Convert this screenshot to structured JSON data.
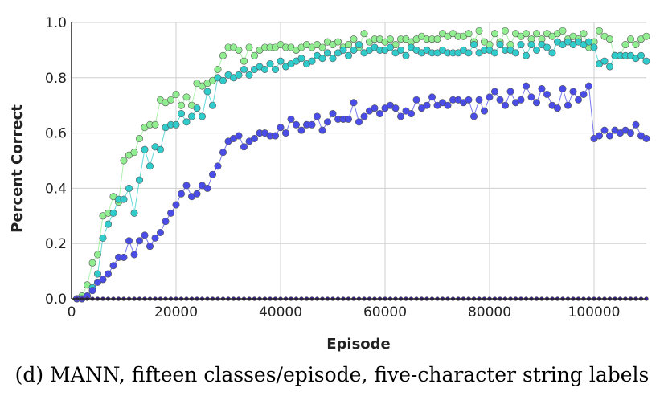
{
  "caption": "(d) MANN, fifteen classes/episode, five-character string labels",
  "chart_data": {
    "type": "line",
    "xlabel": "Episode",
    "ylabel": "Percent Correct",
    "xlim": [
      0,
      110000
    ],
    "ylim": [
      0,
      1.0
    ],
    "xticks": [
      0,
      20000,
      40000,
      60000,
      80000,
      100000
    ],
    "yticks": [
      0.0,
      0.2,
      0.4,
      0.6,
      0.8,
      1.0
    ],
    "ytick_labels": [
      "0.0",
      "0.2",
      "0.4",
      "0.6",
      "0.8",
      "1.0"
    ],
    "grid": true,
    "legend": false,
    "x": [
      1000,
      2000,
      3000,
      4000,
      5000,
      6000,
      7000,
      8000,
      9000,
      10000,
      11000,
      12000,
      13000,
      14000,
      15000,
      16000,
      17000,
      18000,
      19000,
      20000,
      21000,
      22000,
      23000,
      24000,
      25000,
      26000,
      27000,
      28000,
      29000,
      30000,
      31000,
      32000,
      33000,
      34000,
      35000,
      36000,
      37000,
      38000,
      39000,
      40000,
      41000,
      42000,
      43000,
      44000,
      45000,
      46000,
      47000,
      48000,
      49000,
      50000,
      51000,
      52000,
      53000,
      54000,
      55000,
      56000,
      57000,
      58000,
      59000,
      60000,
      61000,
      62000,
      63000,
      64000,
      65000,
      66000,
      67000,
      68000,
      69000,
      70000,
      71000,
      72000,
      73000,
      74000,
      75000,
      76000,
      77000,
      78000,
      79000,
      80000,
      81000,
      82000,
      83000,
      84000,
      85000,
      86000,
      87000,
      88000,
      89000,
      90000,
      91000,
      92000,
      93000,
      94000,
      95000,
      96000,
      97000,
      98000,
      99000,
      100000,
      101000,
      102000,
      103000,
      104000,
      105000,
      106000,
      107000,
      108000,
      109000,
      110000
    ],
    "series": [
      {
        "color": "#90ee90",
        "values": [
          0.0,
          0.01,
          0.05,
          0.13,
          0.16,
          0.3,
          0.31,
          0.37,
          0.35,
          0.5,
          0.52,
          0.53,
          0.58,
          0.62,
          0.63,
          0.63,
          0.72,
          0.71,
          0.72,
          0.74,
          0.7,
          0.73,
          0.7,
          0.78,
          0.77,
          0.78,
          0.79,
          0.83,
          0.88,
          0.91,
          0.91,
          0.9,
          0.86,
          0.91,
          0.88,
          0.9,
          0.91,
          0.91,
          0.91,
          0.92,
          0.91,
          0.91,
          0.9,
          0.91,
          0.92,
          0.91,
          0.92,
          0.91,
          0.93,
          0.92,
          0.93,
          0.91,
          0.92,
          0.94,
          0.91,
          0.96,
          0.93,
          0.94,
          0.94,
          0.93,
          0.94,
          0.92,
          0.94,
          0.94,
          0.93,
          0.94,
          0.95,
          0.94,
          0.94,
          0.94,
          0.96,
          0.95,
          0.96,
          0.95,
          0.95,
          0.96,
          0.93,
          0.97,
          0.93,
          0.92,
          0.96,
          0.93,
          0.97,
          0.92,
          0.96,
          0.95,
          0.96,
          0.94,
          0.96,
          0.94,
          0.96,
          0.95,
          0.96,
          0.97,
          0.94,
          0.95,
          0.94,
          0.96,
          0.91,
          0.93,
          0.97,
          0.95,
          0.94,
          0.88,
          0.88,
          0.92,
          0.94,
          0.92,
          0.94,
          0.95
        ]
      },
      {
        "color": "#30cccc",
        "values": [
          0.0,
          0.0,
          0.01,
          0.04,
          0.09,
          0.22,
          0.27,
          0.31,
          0.36,
          0.36,
          0.4,
          0.31,
          0.43,
          0.54,
          0.48,
          0.55,
          0.54,
          0.62,
          0.63,
          0.63,
          0.67,
          0.64,
          0.66,
          0.69,
          0.66,
          0.75,
          0.7,
          0.8,
          0.79,
          0.81,
          0.8,
          0.81,
          0.83,
          0.81,
          0.83,
          0.84,
          0.83,
          0.85,
          0.83,
          0.86,
          0.84,
          0.85,
          0.86,
          0.87,
          0.85,
          0.86,
          0.88,
          0.87,
          0.89,
          0.87,
          0.89,
          0.9,
          0.88,
          0.9,
          0.92,
          0.89,
          0.9,
          0.91,
          0.9,
          0.9,
          0.91,
          0.89,
          0.9,
          0.88,
          0.91,
          0.9,
          0.89,
          0.9,
          0.89,
          0.89,
          0.9,
          0.89,
          0.89,
          0.89,
          0.9,
          0.89,
          0.92,
          0.89,
          0.9,
          0.9,
          0.89,
          0.92,
          0.9,
          0.9,
          0.89,
          0.92,
          0.88,
          0.92,
          0.9,
          0.92,
          0.91,
          0.89,
          0.93,
          0.92,
          0.93,
          0.92,
          0.93,
          0.92,
          0.93,
          0.91,
          0.85,
          0.86,
          0.84,
          0.88,
          0.88,
          0.88,
          0.88,
          0.87,
          0.88,
          0.86
        ]
      },
      {
        "color": "#4a4ce8",
        "values": [
          0.0,
          0.0,
          0.01,
          0.03,
          0.06,
          0.07,
          0.09,
          0.12,
          0.15,
          0.15,
          0.21,
          0.16,
          0.21,
          0.23,
          0.19,
          0.22,
          0.24,
          0.28,
          0.31,
          0.34,
          0.38,
          0.41,
          0.37,
          0.38,
          0.41,
          0.4,
          0.45,
          0.48,
          0.53,
          0.57,
          0.58,
          0.59,
          0.55,
          0.57,
          0.58,
          0.6,
          0.6,
          0.59,
          0.59,
          0.62,
          0.6,
          0.65,
          0.63,
          0.61,
          0.63,
          0.63,
          0.66,
          0.61,
          0.64,
          0.67,
          0.65,
          0.65,
          0.65,
          0.71,
          0.64,
          0.66,
          0.68,
          0.69,
          0.67,
          0.69,
          0.7,
          0.69,
          0.66,
          0.68,
          0.67,
          0.72,
          0.69,
          0.7,
          0.73,
          0.7,
          0.71,
          0.7,
          0.72,
          0.72,
          0.71,
          0.72,
          0.66,
          0.72,
          0.68,
          0.73,
          0.75,
          0.72,
          0.7,
          0.75,
          0.71,
          0.72,
          0.77,
          0.73,
          0.71,
          0.76,
          0.74,
          0.7,
          0.69,
          0.76,
          0.7,
          0.75,
          0.72,
          0.74,
          0.77,
          0.58,
          0.59,
          0.61,
          0.59,
          0.61,
          0.6,
          0.61,
          0.6,
          0.63,
          0.59,
          0.58
        ]
      },
      {
        "color": "#3b1e9a",
        "values": [
          0,
          0,
          0,
          0,
          0,
          0,
          0,
          0,
          0,
          0,
          0,
          0,
          0,
          0,
          0,
          0,
          0,
          0,
          0,
          0,
          0,
          0,
          0,
          0,
          0,
          0,
          0,
          0,
          0,
          0,
          0,
          0,
          0,
          0,
          0,
          0,
          0,
          0,
          0,
          0,
          0,
          0,
          0,
          0,
          0,
          0,
          0,
          0,
          0,
          0,
          0,
          0,
          0,
          0,
          0,
          0,
          0,
          0,
          0,
          0,
          0,
          0,
          0,
          0,
          0,
          0,
          0,
          0,
          0,
          0,
          0,
          0,
          0,
          0,
          0,
          0,
          0,
          0,
          0,
          0,
          0,
          0,
          0,
          0,
          0,
          0,
          0,
          0,
          0,
          0,
          0,
          0,
          0,
          0,
          0,
          0,
          0,
          0,
          0,
          0,
          0,
          0,
          0,
          0,
          0,
          0,
          0,
          0,
          0,
          0
        ]
      }
    ]
  }
}
